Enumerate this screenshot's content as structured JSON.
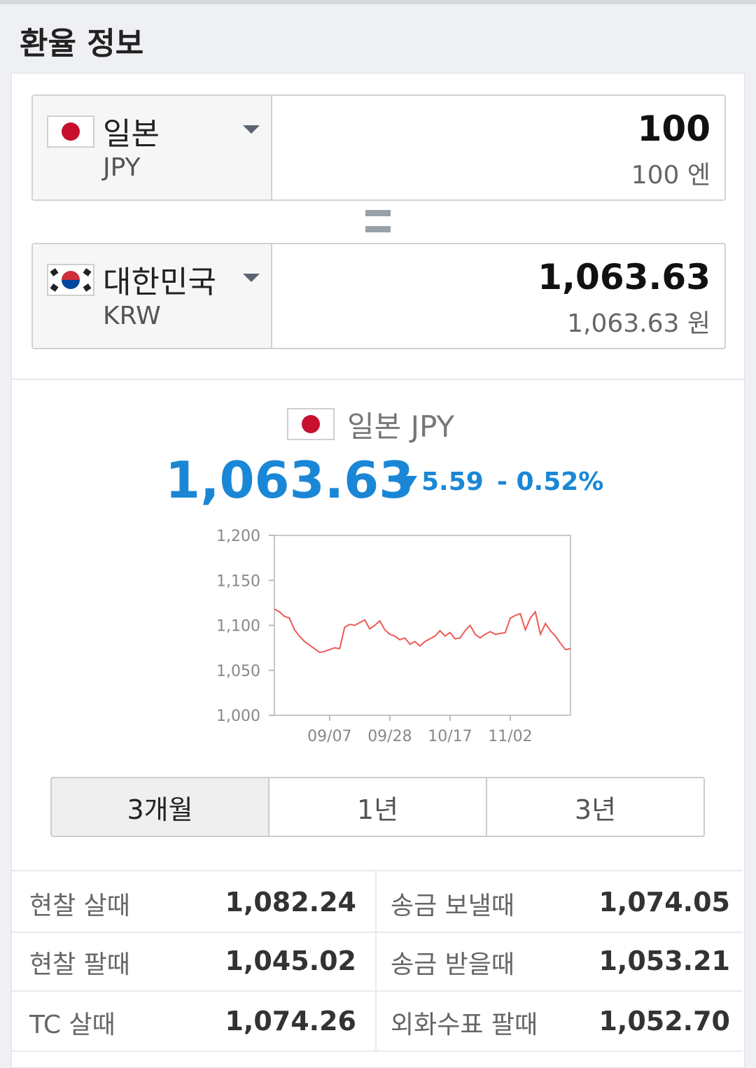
{
  "header": {
    "title": "환율 정보"
  },
  "converter": {
    "from": {
      "country": "일본",
      "code": "JPY",
      "amount": "100",
      "amount_text": "100 엔"
    },
    "to": {
      "country": "대한민국",
      "code": "KRW",
      "amount": "1,063.63",
      "amount_text": "1,063.63 원"
    }
  },
  "summary": {
    "currency": "일본 JPY",
    "rate": "1,063.63",
    "change": "5.59",
    "change_pct": "- 0.52%"
  },
  "chart_data": {
    "type": "line",
    "color": "#ec5a55",
    "categories": [
      null,
      null,
      null,
      null,
      null,
      null,
      null,
      null,
      null,
      null,
      null,
      "09/07",
      null,
      null,
      null,
      null,
      null,
      null,
      null,
      null,
      null,
      null,
      null,
      "09/28",
      null,
      null,
      null,
      null,
      null,
      null,
      null,
      null,
      null,
      null,
      null,
      "10/17",
      null,
      null,
      null,
      null,
      null,
      null,
      null,
      null,
      null,
      null,
      null,
      "11/02",
      null,
      null,
      null,
      null,
      null,
      null,
      null,
      null,
      null,
      null,
      null,
      null
    ],
    "values": [
      1118,
      1115,
      1110,
      1108,
      1095,
      1088,
      1082,
      1078,
      1074,
      1070,
      1071,
      1073,
      1075,
      1074,
      1098,
      1101,
      1100,
      1103,
      1106,
      1096,
      1100,
      1105,
      1095,
      1090,
      1088,
      1084,
      1086,
      1079,
      1082,
      1077,
      1082,
      1085,
      1088,
      1094,
      1088,
      1092,
      1085,
      1086,
      1094,
      1100,
      1090,
      1086,
      1090,
      1093,
      1090,
      1091,
      1092,
      1108,
      1111,
      1113,
      1095,
      1108,
      1115,
      1090,
      1102,
      1094,
      1088,
      1080,
      1073,
      1074
    ],
    "ylim": [
      1000,
      1200
    ],
    "yticks": [
      {
        "value": 1000,
        "label": "1,000"
      },
      {
        "value": 1050,
        "label": "1,050"
      },
      {
        "value": 1100,
        "label": "1,100"
      },
      {
        "value": 1150,
        "label": "1,150"
      },
      {
        "value": 1200,
        "label": "1,200"
      }
    ],
    "grid": false
  },
  "periods": [
    "3개월",
    "1년",
    "3년"
  ],
  "rates": {
    "rows": [
      [
        "현찰 살때",
        "1,082.24",
        "송금 보낼때",
        "1,074.05"
      ],
      [
        "현찰 팔때",
        "1,045.02",
        "송금 받을때",
        "1,053.21"
      ],
      [
        "TC 살때",
        "1,074.26",
        "외화수표 팔때",
        "1,052.70"
      ]
    ]
  }
}
